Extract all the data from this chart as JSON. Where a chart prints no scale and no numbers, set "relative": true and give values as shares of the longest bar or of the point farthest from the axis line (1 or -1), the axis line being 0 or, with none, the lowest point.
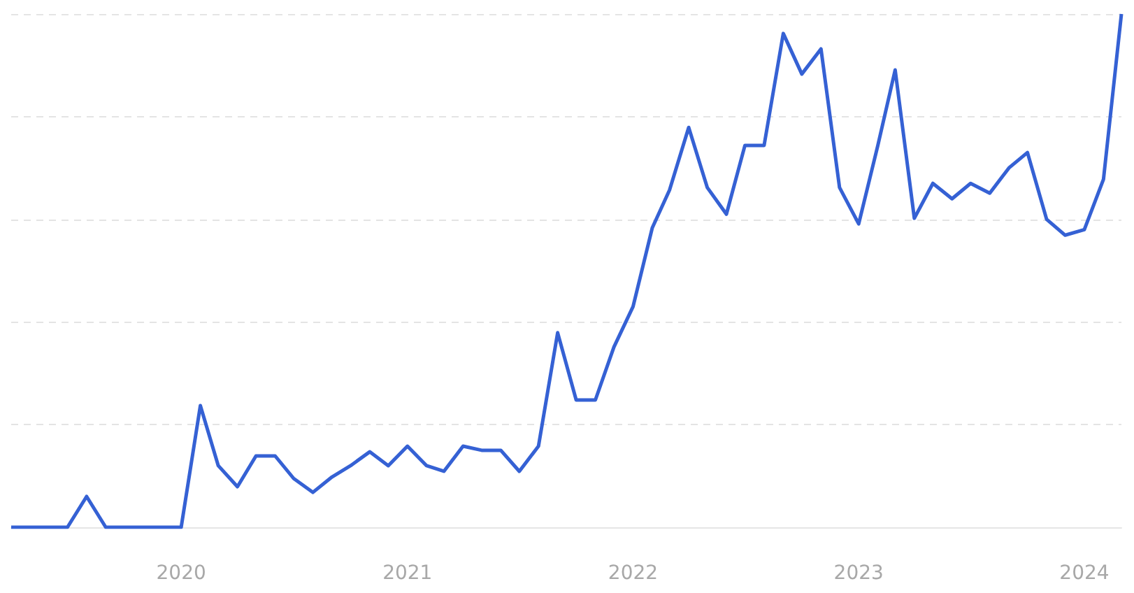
{
  "chart_data": {
    "type": "line",
    "relative": true,
    "grid": "y",
    "marker": "none",
    "line_style": "solid",
    "x": [
      "2019-04",
      "2019-05",
      "2019-06",
      "2019-07",
      "2019-08",
      "2019-09",
      "2019-10",
      "2019-11",
      "2019-12",
      "2020-01",
      "2020-02",
      "2020-03",
      "2020-04",
      "2020-05",
      "2020-06",
      "2020-07",
      "2020-08",
      "2020-09",
      "2020-10",
      "2020-11",
      "2020-12",
      "2021-01",
      "2021-02",
      "2021-03",
      "2021-04",
      "2021-05",
      "2021-06",
      "2021-07",
      "2021-08",
      "2021-09",
      "2021-10",
      "2021-11",
      "2021-12",
      "2022-01",
      "2022-02",
      "2022-03",
      "2022-04",
      "2022-05",
      "2022-06",
      "2022-07",
      "2022-08",
      "2022-09",
      "2022-10",
      "2022-11",
      "2022-12",
      "2023-01",
      "2023-02",
      "2023-03",
      "2023-04",
      "2023-05",
      "2023-06",
      "2023-07",
      "2023-08",
      "2023-09",
      "2023-10",
      "2023-11",
      "2023-12",
      "2024-01",
      "2024-02",
      "2024-03"
    ],
    "xlim": [
      "2019-04",
      "2024-03"
    ],
    "xticks": [
      "2020",
      "2021",
      "2022",
      "2023",
      "2024"
    ],
    "series": [
      {
        "color": "#3561d4",
        "values": [
          0,
          0,
          0,
          0,
          0.06,
          0,
          0,
          0,
          0,
          0,
          0.237,
          0.12,
          0.079,
          0.139,
          0.139,
          0.095,
          0.068,
          0.098,
          0.12,
          0.147,
          0.12,
          0.158,
          0.12,
          0.109,
          0.158,
          0.15,
          0.15,
          0.109,
          0.158,
          0.379,
          0.248,
          0.248,
          0.351,
          0.43,
          0.583,
          0.657,
          0.779,
          0.662,
          0.61,
          0.744,
          0.744,
          0.962,
          0.883,
          0.932,
          0.662,
          0.591,
          0.744,
          0.891,
          0.602,
          0.67,
          0.64,
          0.67,
          0.651,
          0.7,
          0.73,
          0.6,
          0.569,
          0.58,
          0.678,
          1
        ]
      }
    ]
  }
}
